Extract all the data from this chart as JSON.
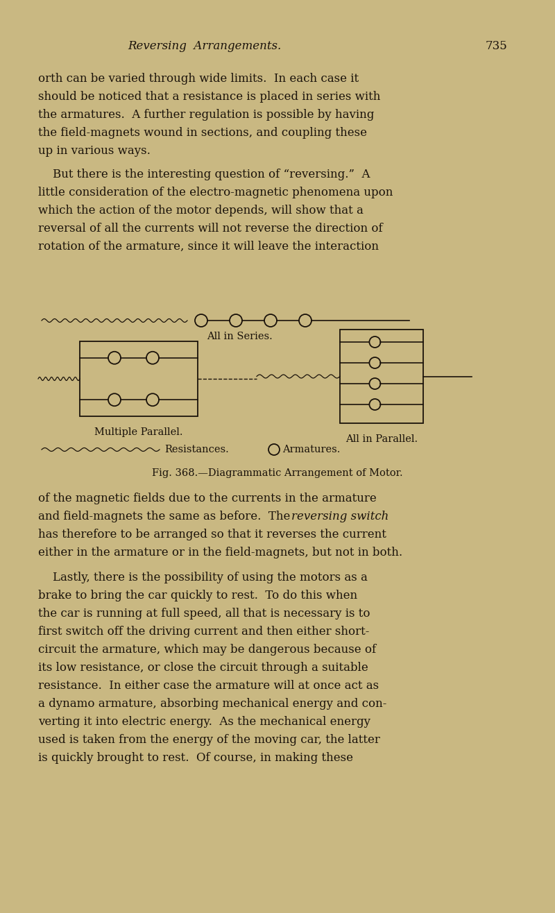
{
  "bg_color": "#c9b882",
  "text_color": "#1a120a",
  "page_width": 8.0,
  "page_height": 13.16,
  "dpi": 100,
  "header_title": "Reversing  Arrangements.",
  "header_page": "735",
  "label_series": "All in Series.",
  "label_multiple": "Multiple Parallel.",
  "label_parallel": "All in Parallel.",
  "label_resistances": "Resistances.",
  "label_armatures": "O  Armatures.",
  "fig_caption": "Fig. 368.—Diagrammatic Arrangement of Motor.",
  "lines1": [
    "orth can be varied through wide limits.  In each case it",
    "should be noticed that a resistance is placed in series with",
    "the armatures.  A further regulation is possible by having",
    "the field-magnets wound in sections, and coupling these",
    "up in various ways."
  ],
  "lines2": [
    "    But there is the interesting question of “reversing.”  A",
    "little consideration of the electro-magnetic phenomena upon",
    "which the action of the motor depends, will show that a",
    "reversal of all the currents will not reverse the direction of",
    "rotation of the armature, since it will leave the interaction"
  ],
  "lines3a": "of the magnetic fields due to the currents in the armature",
  "lines3b_pre": "and field-magnets the same as before.  The ",
  "lines3b_italic": "reversing switch",
  "lines3c": "has therefore to be arranged so that it reverses the current",
  "lines3d": "either in the armature or in the field-magnets, but not in both.",
  "lines4": [
    "    Lastly, there is the possibility of using the motors as a",
    "brake to bring the car quickly to rest.  To do this when",
    "the car is running at full speed, all that is necessary is to",
    "first switch off the driving current and then either short-",
    "circuit the armature, which may be dangerous because of",
    "its low resistance, or close the circuit through a suitable",
    "resistance.  In either case the armature will at once act as",
    "a dynamo armature, absorbing mechanical energy and con-",
    "verting it into electric energy.  As the mechanical energy",
    "used is taken from the energy of the moving car, the latter",
    "is quickly brought to rest.  Of course, in making these"
  ]
}
